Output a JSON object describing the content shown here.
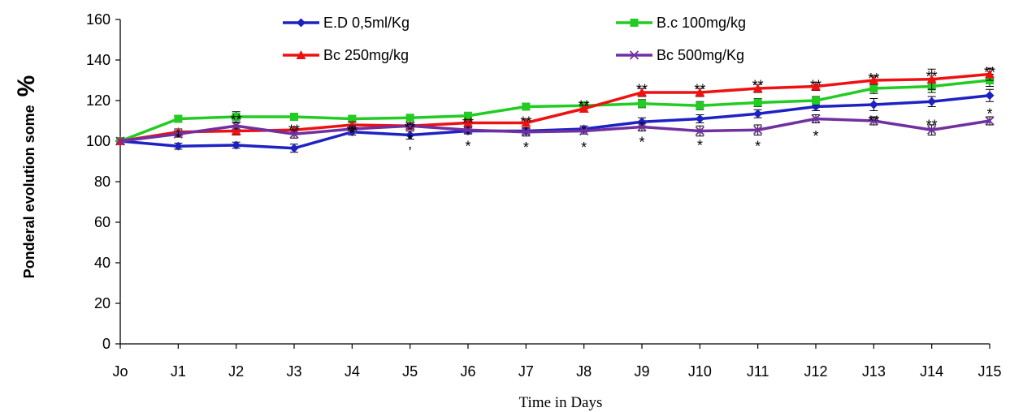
{
  "chart_data": {
    "type": "line",
    "xlabel": "Time in Days",
    "ylabel": "Ponderal evolution some",
    "ylabel_symbol": "%",
    "categories": [
      "Jo",
      "J1",
      "J2",
      "J3",
      "J4",
      "J5",
      "J6",
      "J7",
      "J8",
      "J9",
      "J10",
      "J11",
      "J12",
      "J13",
      "J14",
      "J15"
    ],
    "ylim": [
      0,
      160
    ],
    "yticks": [
      0,
      20,
      40,
      60,
      80,
      100,
      120,
      140,
      160
    ],
    "grid": false,
    "legend_position": "top",
    "series": [
      {
        "name": "E.D 0,5ml/Kg",
        "color": "#1f22c2",
        "marker": "diamond",
        "values": [
          100,
          97.5,
          98,
          96.5,
          104.5,
          103,
          105,
          105,
          106,
          109.5,
          111,
          113.5,
          117,
          118,
          119.5,
          122.5
        ],
        "errors": [
          0,
          1.5,
          1.5,
          2,
          1.5,
          2,
          1.5,
          1.5,
          1.5,
          2,
          2,
          2,
          2,
          3,
          2.5,
          3
        ]
      },
      {
        "name": "B.c 100mg/kg",
        "color": "#22cc22",
        "marker": "square",
        "values": [
          100,
          111,
          112,
          112,
          111,
          111.5,
          112.5,
          117,
          117.5,
          118.5,
          117.5,
          119,
          120,
          126,
          127,
          130
        ],
        "errors": [
          0,
          1.5,
          2.5,
          1.5,
          1.5,
          1.5,
          1.5,
          1.5,
          1.5,
          2,
          2,
          2,
          2,
          2.5,
          3,
          3
        ]
      },
      {
        "name": "Bc 250mg/kg",
        "color": "#ee1111",
        "marker": "triangle",
        "values": [
          100,
          104.5,
          105,
          105.5,
          108,
          107.5,
          109,
          109,
          116,
          124,
          124,
          126,
          127,
          130,
          130.5,
          133
        ],
        "errors": [
          0,
          1.5,
          2,
          1.5,
          1.5,
          1.5,
          1.5,
          1.5,
          1.5,
          2,
          2,
          2,
          2,
          2,
          5,
          3
        ]
      },
      {
        "name": "Bc 500mg/Kg",
        "color": "#7030a0",
        "marker": "x",
        "values": [
          100,
          103.5,
          107.5,
          103.5,
          106,
          107.5,
          105.5,
          104.5,
          105,
          107,
          105,
          105.5,
          111,
          110,
          105.5,
          110
        ],
        "errors": [
          0,
          1.5,
          1.5,
          2,
          1.5,
          1.5,
          1.5,
          2,
          1.5,
          2,
          2.5,
          2.5,
          2,
          2,
          2.5,
          2
        ]
      }
    ],
    "significance_marks": [
      {
        "label": "*",
        "category": "J1",
        "y": 103
      },
      {
        "label": "**",
        "category": "J2",
        "y": 112
      },
      {
        "label": "**",
        "category": "J3",
        "y": 107
      },
      {
        "label": "**",
        "category": "J4",
        "y": 106.5
      },
      {
        "label": "*",
        "category": "J4",
        "y": 106
      },
      {
        "label": "**",
        "category": "J5",
        "y": 108
      },
      {
        "label": "*",
        "category": "J5",
        "y": 102.5
      },
      {
        "label": ",",
        "category": "J5",
        "y": 100.5
      },
      {
        "label": "**",
        "category": "J6",
        "y": 110.5
      },
      {
        "label": "*",
        "category": "J6",
        "y": 99
      },
      {
        "label": "**",
        "category": "J7",
        "y": 111
      },
      {
        "label": "*",
        "category": "J7",
        "y": 98.5
      },
      {
        "label": "**",
        "category": "J8",
        "y": 119
      },
      {
        "label": "*",
        "category": "J8",
        "y": 98.5
      },
      {
        "label": "**",
        "category": "J9",
        "y": 127
      },
      {
        "label": "*",
        "category": "J9",
        "y": 101
      },
      {
        "label": "**",
        "category": "J10",
        "y": 127
      },
      {
        "label": "*",
        "category": "J10",
        "y": 99.5
      },
      {
        "label": "**",
        "category": "J11",
        "y": 129
      },
      {
        "label": "*",
        "category": "J11",
        "y": 99
      },
      {
        "label": "**",
        "category": "J12",
        "y": 129
      },
      {
        "label": "*",
        "category": "J12",
        "y": 104
      },
      {
        "label": "**",
        "category": "J13",
        "y": 132.5
      },
      {
        "label": "**",
        "category": "J13",
        "y": 111.5
      },
      {
        "label": "**",
        "category": "J14",
        "y": 133.5
      },
      {
        "label": "**",
        "category": "J14",
        "y": 109.5
      },
      {
        "label": "**",
        "category": "J15",
        "y": 135.5
      },
      {
        "label": "*",
        "category": "J15",
        "y": 115
      }
    ]
  }
}
